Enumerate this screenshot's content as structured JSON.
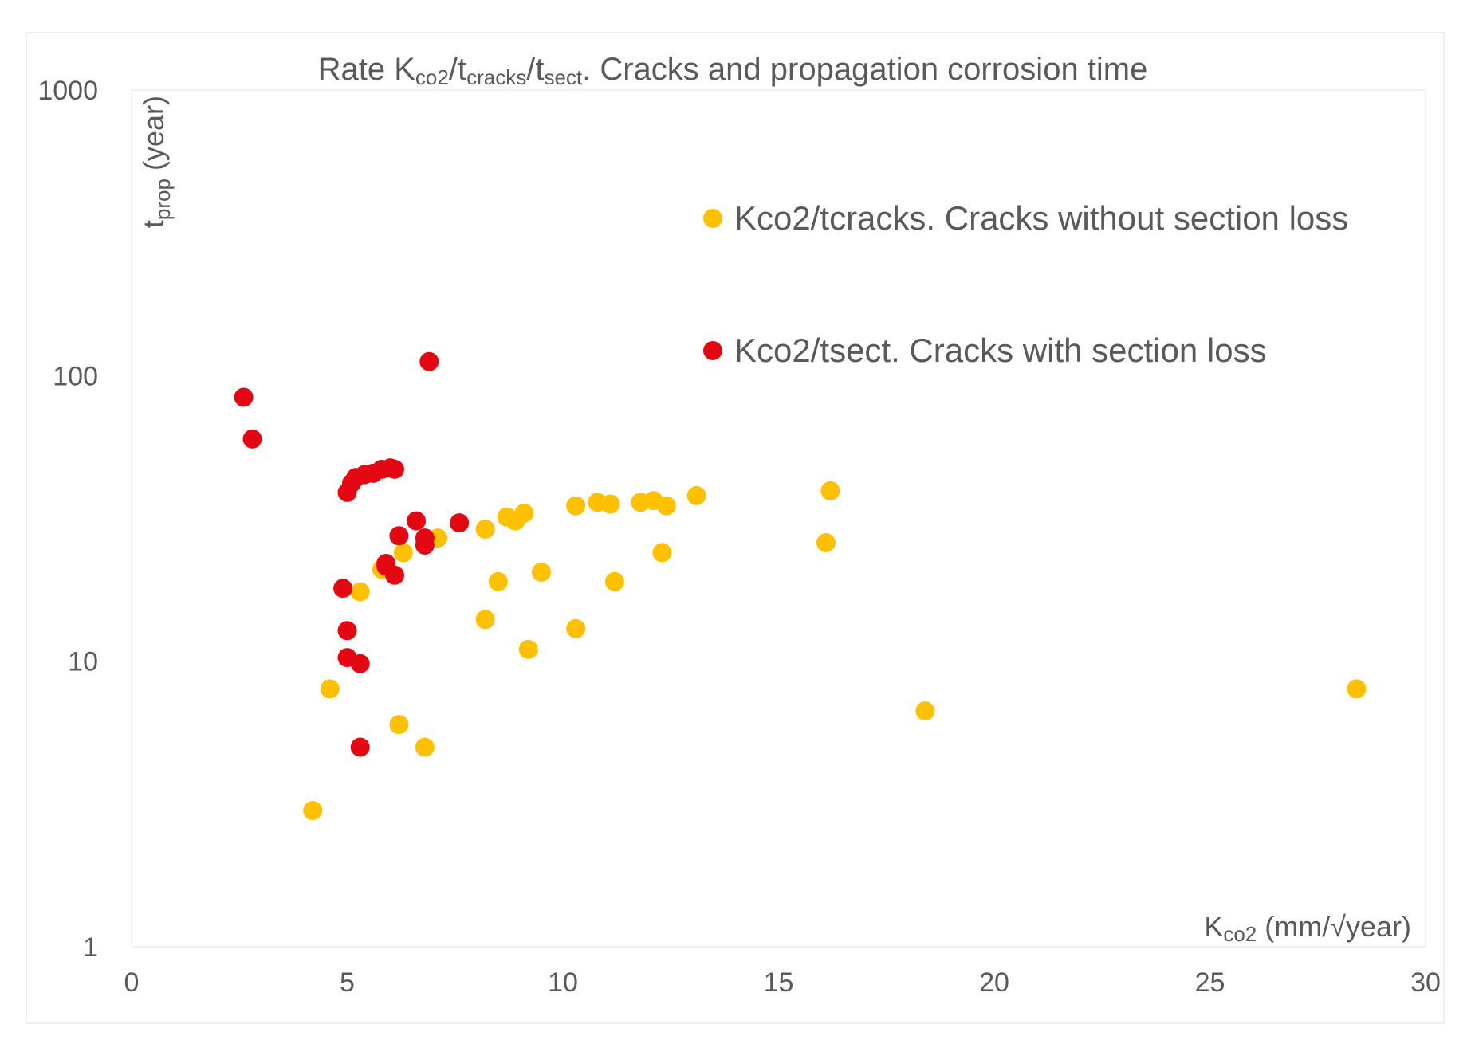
{
  "chart_data": {
    "type": "scatter",
    "title": {
      "prefix": "Rate K",
      "sub1": "co2",
      "mid1": "/t",
      "sub2": "cracks",
      "mid2": "/t",
      "sub3": "sect",
      "suffix": ". Cracks and propagation corrosion time"
    },
    "xlabel": {
      "main": "K",
      "sub": "co2",
      "rest": " (mm/√year)"
    },
    "ylabel": {
      "main": "t",
      "sub": "prop",
      "rest": " (year)"
    },
    "xlim": [
      0,
      30
    ],
    "ylim": [
      1,
      1000
    ],
    "yscale": "log",
    "x_ticks": [
      "0",
      "5",
      "10",
      "15",
      "20",
      "25",
      "30"
    ],
    "y_ticks": [
      "1",
      "10",
      "100",
      "1000"
    ],
    "x_tick_values": [
      0,
      5,
      10,
      15,
      20,
      25,
      30
    ],
    "y_tick_values": [
      1,
      10,
      100,
      1000
    ],
    "legend_position": "top-right",
    "series": [
      {
        "name": "Kco2/tcracks. Cracks without section loss",
        "color": "#FFC000",
        "points": [
          [
            4.2,
            3.0
          ],
          [
            4.6,
            8.0
          ],
          [
            5.3,
            17.5
          ],
          [
            5.8,
            21.0
          ],
          [
            6.2,
            6.0
          ],
          [
            6.3,
            24.0
          ],
          [
            6.8,
            5.0
          ],
          [
            7.1,
            27.0
          ],
          [
            8.2,
            14.0
          ],
          [
            8.2,
            29.0
          ],
          [
            8.5,
            19.0
          ],
          [
            8.7,
            32.0
          ],
          [
            8.9,
            31.0
          ],
          [
            9.1,
            33.0
          ],
          [
            9.2,
            11.0
          ],
          [
            9.5,
            20.5
          ],
          [
            10.3,
            13.0
          ],
          [
            10.3,
            35.0
          ],
          [
            10.8,
            36.0
          ],
          [
            11.1,
            35.5
          ],
          [
            11.2,
            19.0
          ],
          [
            11.8,
            36.0
          ],
          [
            12.1,
            36.5
          ],
          [
            12.3,
            24.0
          ],
          [
            12.4,
            35.0
          ],
          [
            13.1,
            38.0
          ],
          [
            16.1,
            26.0
          ],
          [
            16.2,
            39.5
          ],
          [
            18.4,
            6.7
          ],
          [
            28.4,
            8.0
          ]
        ]
      },
      {
        "name": "Kco2/tsect. Cracks with section loss",
        "color": "#E30613",
        "points": [
          [
            2.6,
            84.0
          ],
          [
            2.8,
            60.0
          ],
          [
            4.9,
            18.0
          ],
          [
            5.0,
            39.0
          ],
          [
            5.0,
            12.8
          ],
          [
            5.0,
            10.3
          ],
          [
            5.1,
            42.0
          ],
          [
            5.2,
            44.0
          ],
          [
            5.3,
            9.8
          ],
          [
            5.3,
            5.0
          ],
          [
            5.4,
            45.0
          ],
          [
            5.6,
            45.5
          ],
          [
            5.8,
            47.0
          ],
          [
            5.9,
            22.0
          ],
          [
            5.9,
            21.5
          ],
          [
            6.0,
            47.5
          ],
          [
            6.1,
            20.0
          ],
          [
            6.1,
            47.0
          ],
          [
            6.2,
            27.5
          ],
          [
            6.6,
            31.0
          ],
          [
            6.8,
            27.0
          ],
          [
            6.8,
            25.5
          ],
          [
            6.9,
            112.0
          ],
          [
            7.6,
            30.5
          ]
        ]
      }
    ]
  }
}
